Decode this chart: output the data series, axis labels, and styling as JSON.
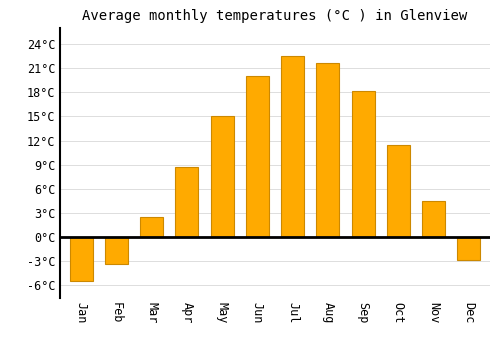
{
  "title": "Average monthly temperatures (°C ) in Glenview",
  "months": [
    "Jan",
    "Feb",
    "Mar",
    "Apr",
    "May",
    "Jun",
    "Jul",
    "Aug",
    "Sep",
    "Oct",
    "Nov",
    "Dec"
  ],
  "values": [
    -5.5,
    -3.3,
    2.5,
    8.7,
    15.0,
    20.0,
    22.5,
    21.7,
    18.2,
    11.5,
    4.5,
    -2.8
  ],
  "bar_color": "#FFAA00",
  "bar_edge_color": "#CC8800",
  "background_color": "#FFFFFF",
  "grid_color": "#DDDDDD",
  "ylim": [
    -7.5,
    26
  ],
  "yticks": [
    -6,
    -3,
    0,
    3,
    6,
    9,
    12,
    15,
    18,
    21,
    24
  ],
  "title_fontsize": 10,
  "tick_fontsize": 8.5
}
